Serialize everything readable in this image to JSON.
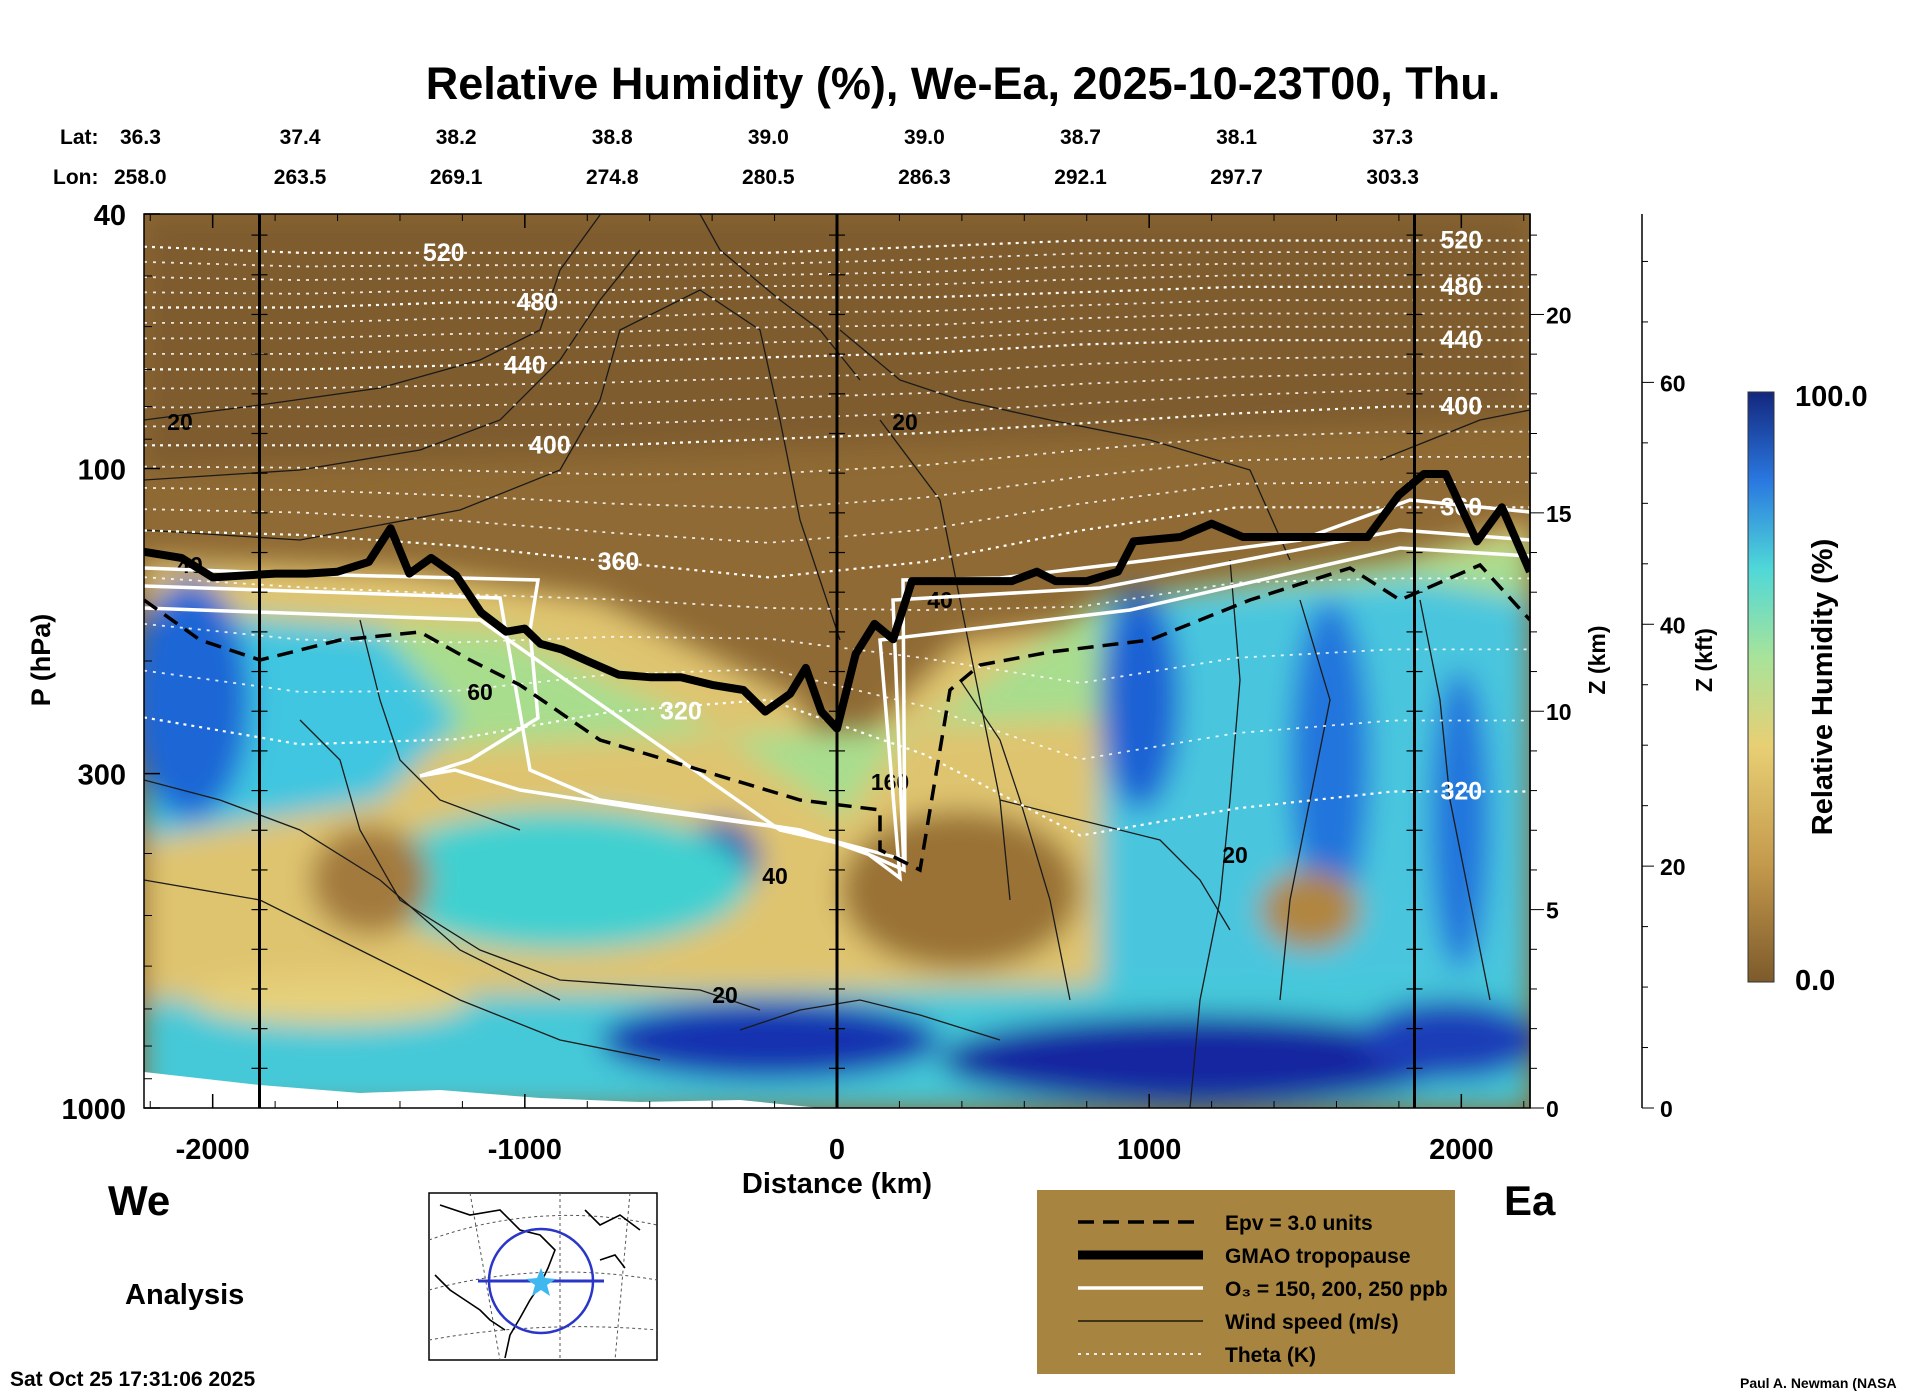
{
  "chart_data": {
    "type": "heatmap",
    "title": "Relative Humidity (%), We-Ea, 2025-10-23T00, Thu.",
    "xlabel": "Distance (km)",
    "ylabel": "P (hPa)",
    "zlabel_km": "Z (km)",
    "zlabel_kft": "Z (kft)",
    "colorbar_label": "Relative Humidity (%)",
    "colorbar_range": [
      0.0,
      100.0
    ],
    "colorbar_max_label": "100.0",
    "colorbar_min_label": "0.0",
    "xlim": [
      -2220,
      2220
    ],
    "ylim_hpa": [
      1000,
      40
    ],
    "x_ticks": [
      -2000,
      -1000,
      0,
      1000,
      2000
    ],
    "x_tick_labels": [
      "-2000",
      "-1000",
      "0",
      "1000",
      "2000"
    ],
    "p_ticks": [
      40,
      100,
      300,
      1000
    ],
    "p_tick_labels": [
      "40",
      "100",
      "300",
      "1000"
    ],
    "z_km_ticks": [
      0,
      5,
      10,
      15,
      20
    ],
    "z_km_tick_labels": [
      "0",
      "5",
      "10",
      "15",
      "20"
    ],
    "z_kft_ticks": [
      0,
      20,
      40,
      60
    ],
    "z_kft_tick_labels": [
      "0",
      "20",
      "40",
      "60"
    ],
    "lat_label": "Lat:",
    "lon_label": "Lon:",
    "lat_values": [
      "36.3",
      "37.4",
      "38.2",
      "38.8",
      "39.0",
      "39.0",
      "38.7",
      "38.1",
      "37.3"
    ],
    "lon_values": [
      "258.0",
      "263.5",
      "269.1",
      "274.8",
      "280.5",
      "286.3",
      "292.1",
      "297.7",
      "303.3"
    ],
    "lat_lon_x": [
      -2220,
      -1720,
      -1220,
      -720,
      -220,
      280,
      780,
      1280,
      1780
    ],
    "vertical_marker_x": [
      -1850,
      0,
      1850
    ],
    "west_label": "We",
    "east_label": "Ea",
    "analysis_label": "Analysis",
    "tropopause_hpa": [
      [
        -2220,
        135
      ],
      [
        -2100,
        138
      ],
      [
        -2000,
        148
      ],
      [
        -1900,
        147
      ],
      [
        -1800,
        146
      ],
      [
        -1700,
        146
      ],
      [
        -1600,
        145
      ],
      [
        -1500,
        140
      ],
      [
        -1430,
        124
      ],
      [
        -1370,
        146
      ],
      [
        -1300,
        138
      ],
      [
        -1220,
        147
      ],
      [
        -1140,
        168
      ],
      [
        -1060,
        180
      ],
      [
        -1000,
        178
      ],
      [
        -950,
        188
      ],
      [
        -880,
        192
      ],
      [
        -800,
        200
      ],
      [
        -700,
        210
      ],
      [
        -600,
        212
      ],
      [
        -500,
        212
      ],
      [
        -400,
        218
      ],
      [
        -300,
        222
      ],
      [
        -230,
        240
      ],
      [
        -150,
        225
      ],
      [
        -100,
        205
      ],
      [
        -50,
        240
      ],
      [
        0,
        255
      ],
      [
        60,
        195
      ],
      [
        120,
        175
      ],
      [
        180,
        185
      ],
      [
        240,
        150
      ],
      [
        400,
        150
      ],
      [
        560,
        150
      ],
      [
        640,
        145
      ],
      [
        700,
        150
      ],
      [
        800,
        150
      ],
      [
        900,
        145
      ],
      [
        950,
        130
      ],
      [
        1100,
        128
      ],
      [
        1200,
        122
      ],
      [
        1300,
        128
      ],
      [
        1500,
        128
      ],
      [
        1700,
        128
      ],
      [
        1800,
        110
      ],
      [
        1880,
        102
      ],
      [
        1950,
        102
      ],
      [
        2050,
        130
      ],
      [
        2130,
        115
      ],
      [
        2220,
        145
      ]
    ],
    "theta_contours": [
      {
        "label": "520",
        "p": [
          45,
          46,
          46,
          46,
          46,
          45,
          44,
          44,
          44
        ]
      },
      {
        "label": "480",
        "p": [
          56,
          56,
          55,
          55,
          54,
          54,
          53,
          52,
          52
        ]
      },
      {
        "label": "440",
        "p": [
          70,
          70,
          69,
          68,
          67,
          66,
          64,
          63,
          63
        ]
      },
      {
        "label": "400",
        "p": [
          92,
          92,
          92,
          92,
          90,
          88,
          85,
          82,
          80
        ]
      },
      {
        "label": "360",
        "p": [
          125,
          127,
          132,
          140,
          148,
          140,
          125,
          115,
          115
        ]
      },
      {
        "label": "320",
        "p": [
          245,
          270,
          265,
          240,
          230,
          280,
          375,
          340,
          320
        ]
      }
    ],
    "legend": [
      {
        "style": "dashed",
        "label": "Epv = 3.0 units"
      },
      {
        "style": "thick",
        "label": "GMAO tropopause"
      },
      {
        "style": "white",
        "label": "O₃ = 150, 200, 250 ppb"
      },
      {
        "style": "thin",
        "label": "Wind speed (m/s)"
      },
      {
        "style": "dotted",
        "label": "Theta (K)"
      }
    ],
    "wind_labels": [
      "20",
      "40",
      "60",
      "160"
    ],
    "timestamp": "Sat Oct 25 17:31:06 2025",
    "credit": "Paul A. Newman (NASA"
  },
  "colors": {
    "dry": "#8c6631",
    "mid": "#d9b86a",
    "moist": "#58d4d4",
    "wet": "#1a3db5",
    "legend_bg": "#a7843f"
  }
}
